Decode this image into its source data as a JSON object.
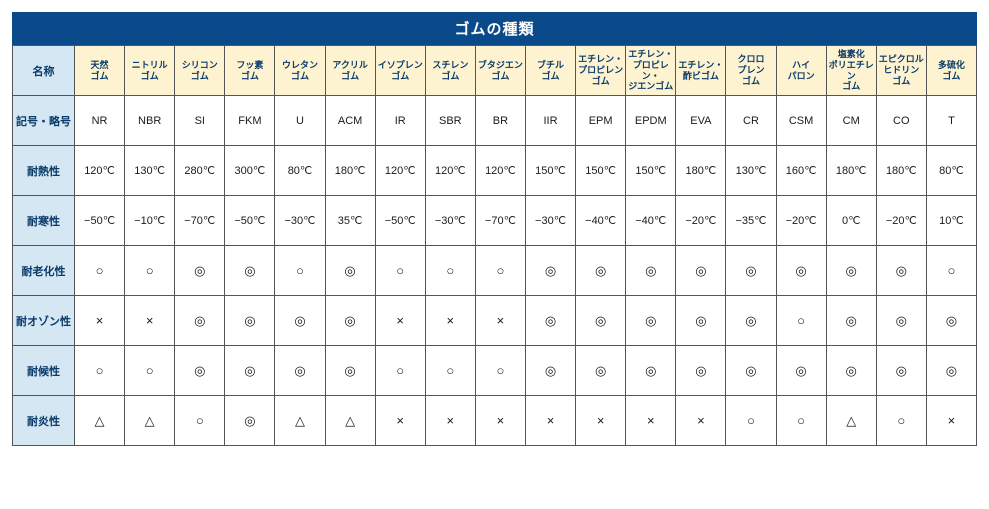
{
  "title": "ゴムの種類",
  "title_bg": "#0a4a8a",
  "title_fg": "#ffffff",
  "label_bg": "#d4e7f2",
  "header_bg": "#fdf3d0",
  "cell_bg": "#ffffff",
  "border_color": "#555555",
  "columns": [
    "天然\nゴム",
    "ニトリル\nゴム",
    "シリコン\nゴム",
    "フッ素\nゴム",
    "ウレタン\nゴム",
    "アクリル\nゴム",
    "イソプレン\nゴム",
    "スチレン\nゴム",
    "ブタジエン\nゴム",
    "ブチル\nゴム",
    "エチレン・\nプロピレン\nゴム",
    "エチレン・\nプロピレン・\nジエンゴム",
    "エチレン・\n酢ビゴム",
    "クロロ\nプレン\nゴム",
    "ハイ\nパロン",
    "塩素化\nポリエチレン\nゴム",
    "エピクロル\nヒドリン\nゴム",
    "多硫化\nゴム"
  ],
  "row_labels": [
    "名称",
    "記号・略号",
    "耐熱性",
    "耐寒性",
    "耐老化性",
    "耐オゾン性",
    "耐候性",
    "耐炎性"
  ],
  "rows": {
    "codes": [
      "NR",
      "NBR",
      "SI",
      "FKM",
      "U",
      "ACM",
      "IR",
      "SBR",
      "BR",
      "IIR",
      "EPM",
      "EPDM",
      "EVA",
      "CR",
      "CSM",
      "CM",
      "CO",
      "T"
    ],
    "heat": [
      "120℃",
      "130℃",
      "280℃",
      "300℃",
      "80℃",
      "180℃",
      "120℃",
      "120℃",
      "120℃",
      "150℃",
      "150℃",
      "150℃",
      "180℃",
      "130℃",
      "160℃",
      "180℃",
      "180℃",
      "80℃"
    ],
    "cold": [
      "−50℃",
      "−10℃",
      "−70℃",
      "−50℃",
      "−30℃",
      "35℃",
      "−50℃",
      "−30℃",
      "−70℃",
      "−30℃",
      "−40℃",
      "−40℃",
      "−20℃",
      "−35℃",
      "−20℃",
      "0℃",
      "−20℃",
      "10℃"
    ],
    "aging": [
      "○",
      "○",
      "◎",
      "◎",
      "○",
      "◎",
      "○",
      "○",
      "○",
      "◎",
      "◎",
      "◎",
      "◎",
      "◎",
      "◎",
      "◎",
      "◎",
      "○"
    ],
    "ozone": [
      "×",
      "×",
      "◎",
      "◎",
      "◎",
      "◎",
      "×",
      "×",
      "×",
      "◎",
      "◎",
      "◎",
      "◎",
      "◎",
      "○",
      "◎",
      "◎",
      "◎"
    ],
    "weather": [
      "○",
      "○",
      "◎",
      "◎",
      "◎",
      "◎",
      "○",
      "○",
      "○",
      "◎",
      "◎",
      "◎",
      "◎",
      "◎",
      "◎",
      "◎",
      "◎",
      "◎"
    ],
    "flame": [
      "△",
      "△",
      "○",
      "◎",
      "△",
      "△",
      "×",
      "×",
      "×",
      "×",
      "×",
      "×",
      "×",
      "○",
      "○",
      "△",
      "○",
      "×"
    ]
  }
}
